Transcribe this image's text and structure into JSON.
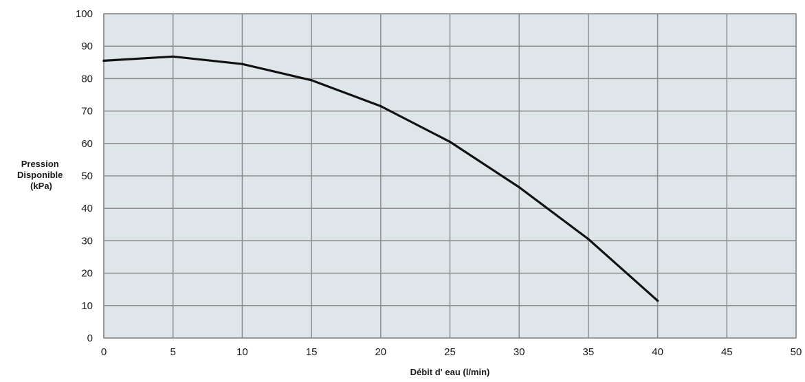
{
  "chart_data": {
    "type": "line",
    "xlabel": "Débit d' eau  (l/min)",
    "ylabel_lines": [
      "Pression",
      "Disponible",
      "(kPa)"
    ],
    "xlim": [
      0,
      50
    ],
    "ylim": [
      0,
      100
    ],
    "x_ticks": [
      "0",
      "5",
      "10",
      "15",
      "20",
      "25",
      "30",
      "35",
      "40",
      "45",
      "50"
    ],
    "y_ticks": [
      "0",
      "10",
      "20",
      "30",
      "40",
      "50",
      "60",
      "70",
      "80",
      "90",
      "100"
    ],
    "grid": true,
    "series": [
      {
        "x": [
          0,
          5,
          10,
          15,
          20,
          25,
          30,
          35,
          40
        ],
        "values": [
          85.5,
          86.8,
          84.5,
          79.5,
          71.5,
          60.5,
          46.5,
          30.5,
          11.5
        ]
      }
    ],
    "colors": {
      "plot_background": "#dfe6ea",
      "grid": "#8d8d8d",
      "line": "#111111"
    }
  }
}
